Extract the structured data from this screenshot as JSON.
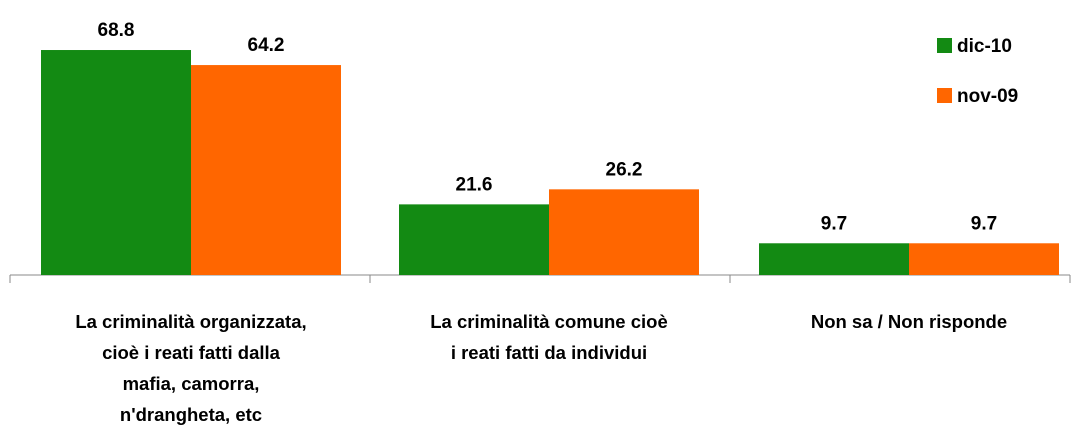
{
  "chart_data": {
    "type": "bar",
    "categories": [
      "La criminalità organizzata,\ncioè i reati fatti dalla\nmafia, camorra,\nn'drangheta, etc",
      "La criminalità comune cioè\ni reati fatti da individui",
      "Non sa / Non risponde"
    ],
    "series": [
      {
        "name": "dic-10",
        "color": "#138a13",
        "values": [
          68.8,
          21.6,
          9.7
        ]
      },
      {
        "name": "nov-09",
        "color": "#ff6600",
        "values": [
          64.2,
          26.2,
          9.7
        ]
      }
    ],
    "legend": "top-right"
  }
}
